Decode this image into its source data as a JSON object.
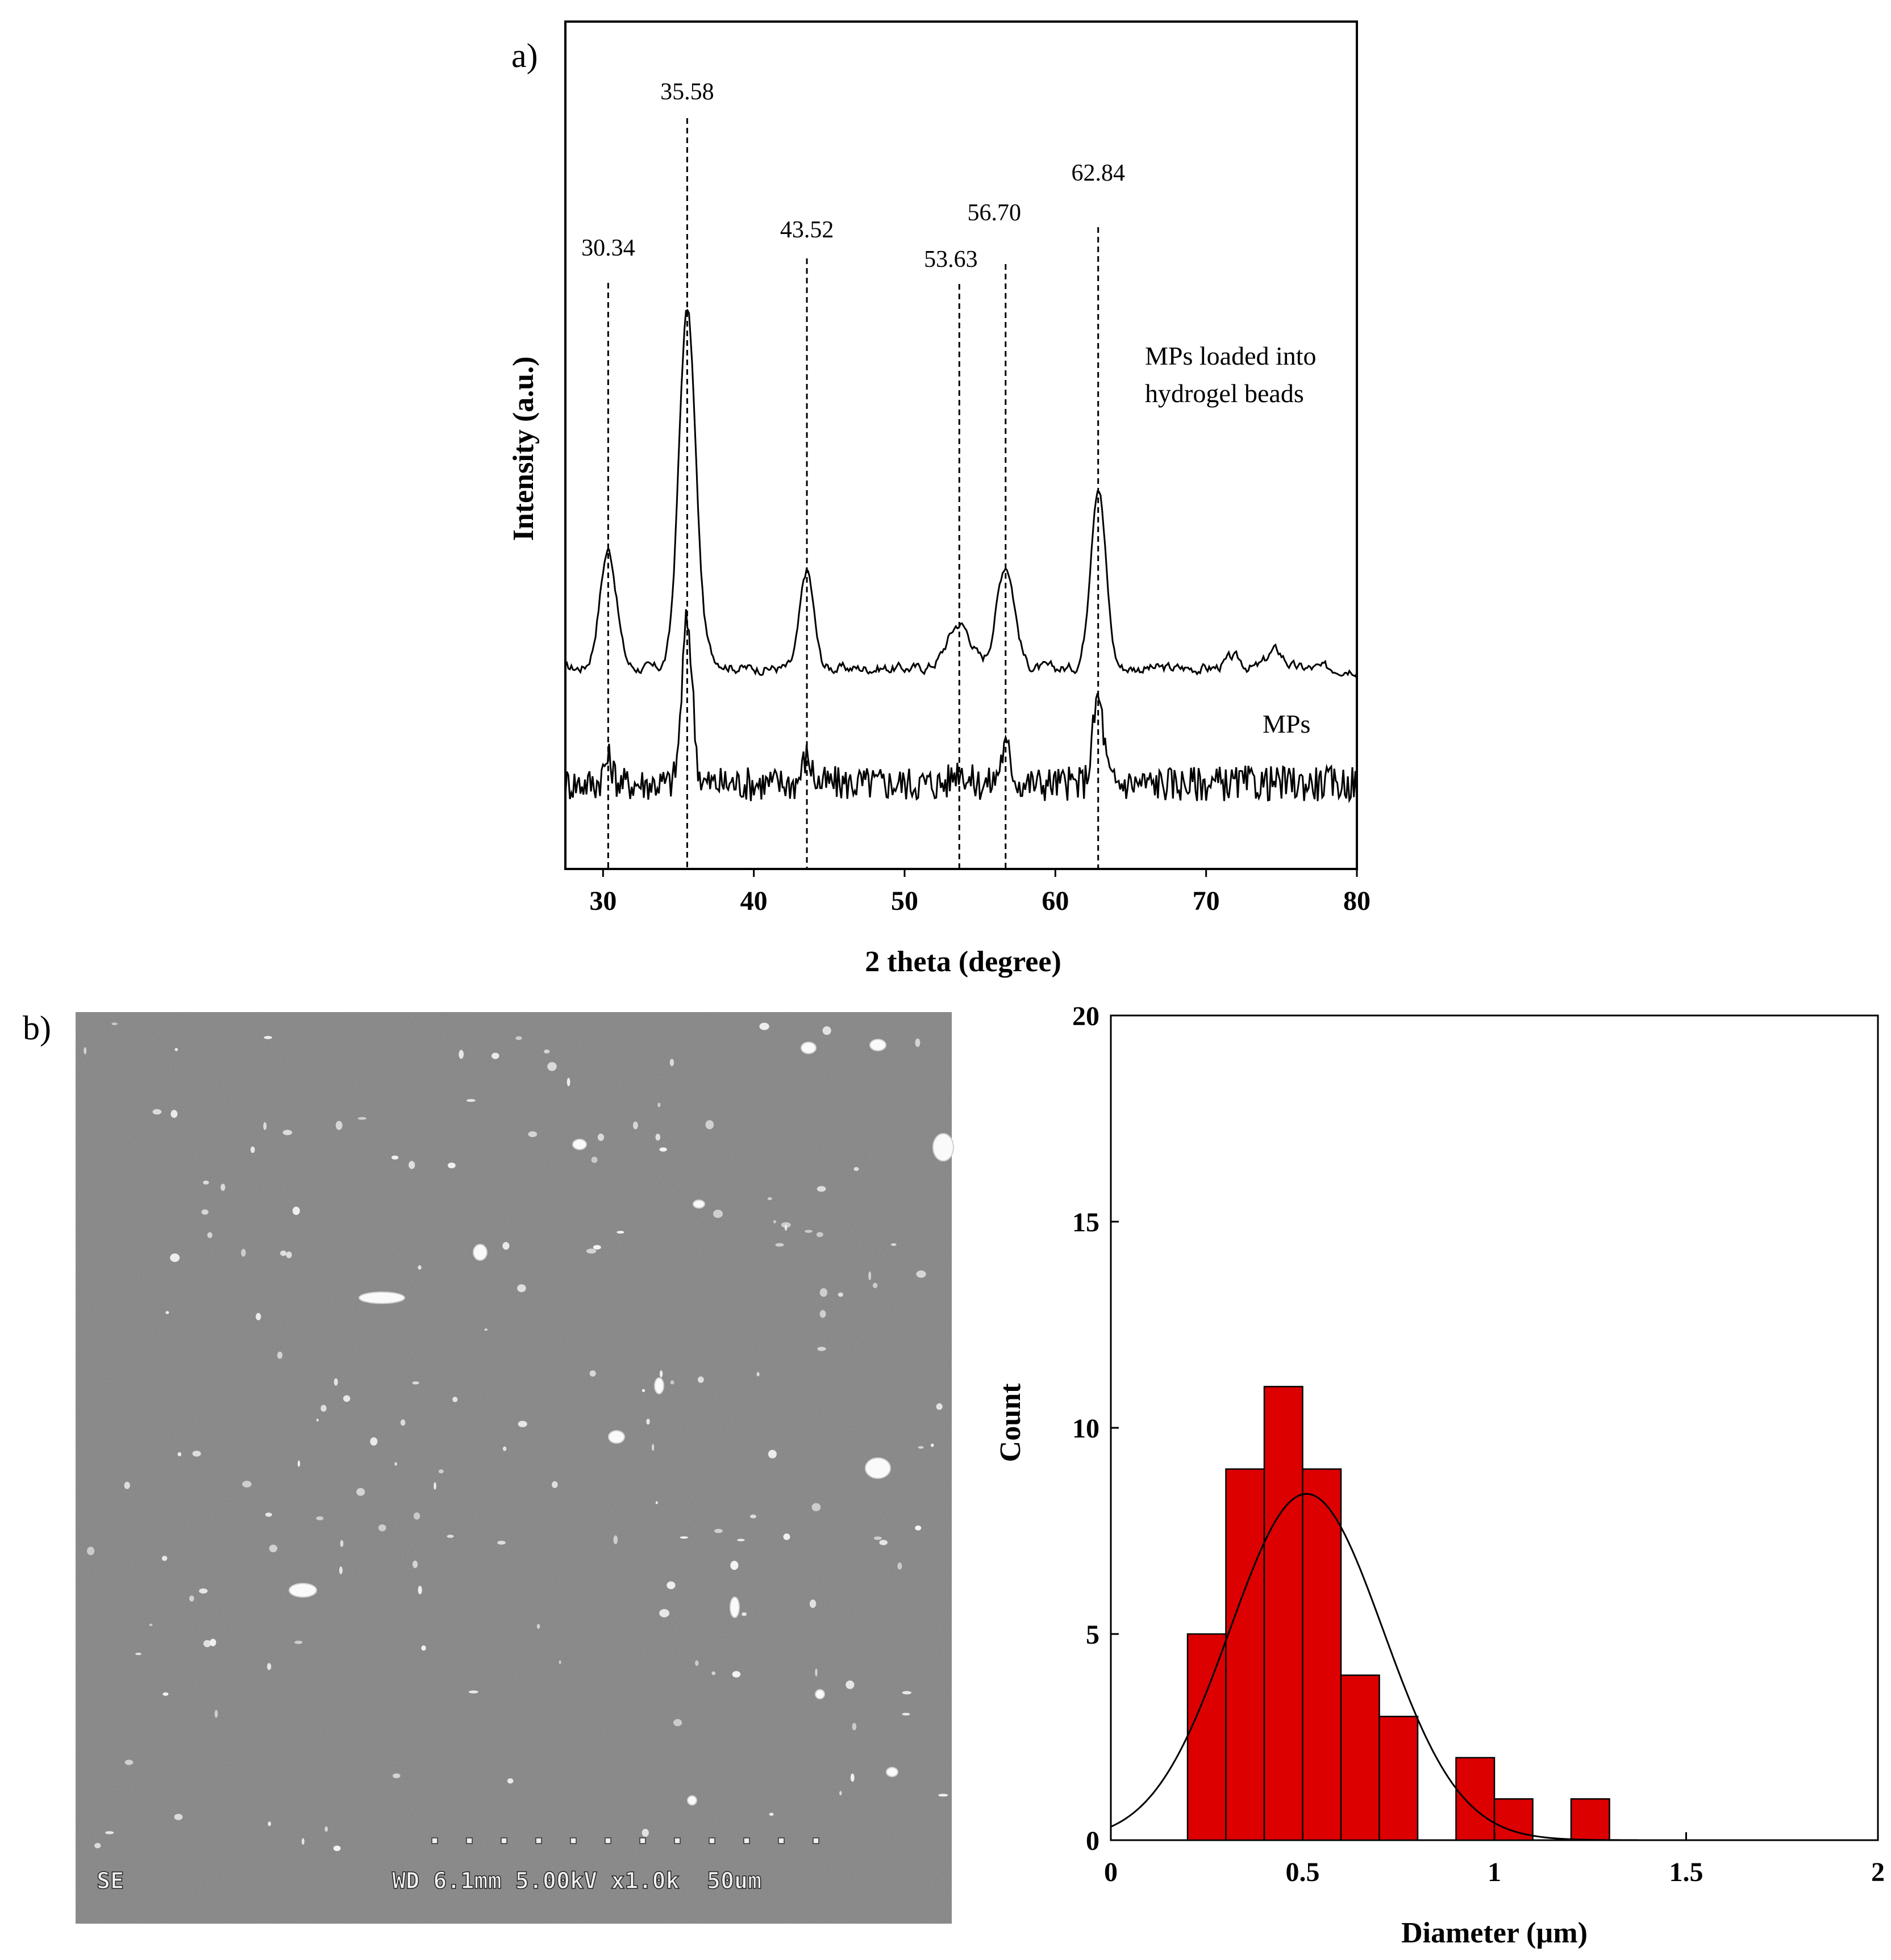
{
  "panel_labels": {
    "a": "a)",
    "b": "b)"
  },
  "chart_data": [
    {
      "type": "line",
      "xlabel": "2 theta (degree)",
      "ylabel": "Intensity (a.u.)",
      "xlim": [
        27.5,
        80
      ],
      "x_ticks": [
        30,
        40,
        50,
        60,
        70,
        80
      ],
      "y_ticks": [],
      "grid": false,
      "peak_labels": [
        "30.34",
        "35.58",
        "43.52",
        "53.63",
        "56.70",
        "62.84"
      ],
      "peak_positions": [
        30.34,
        35.58,
        43.52,
        53.63,
        56.7,
        62.84
      ],
      "series": [
        {
          "name": "MPs loaded into hydrogel beads",
          "label_lines": [
            "MPs loaded into",
            "hydrogel beads"
          ],
          "baseline": 0.42,
          "peak_heights": [
            0.4,
            1.2,
            0.33,
            0.15,
            0.35,
            0.62
          ]
        },
        {
          "name": "MPs",
          "label_lines": [
            "MPs"
          ],
          "baseline": 0.03,
          "peak_heights": [
            0.08,
            0.55,
            0.09,
            0.05,
            0.12,
            0.29
          ]
        }
      ]
    },
    {
      "type": "bar",
      "xlabel": "Diameter (µm)",
      "ylabel": "Count",
      "xlim": [
        0,
        2
      ],
      "ylim": [
        0,
        20
      ],
      "x_ticks": [
        "0",
        "0.5",
        "1",
        "1.5",
        "2"
      ],
      "y_ticks": [
        "0",
        "5",
        "10",
        "15",
        "20"
      ],
      "grid": false,
      "bar_color": "#dd0000",
      "bins": [
        {
          "start": 0.2,
          "end": 0.3,
          "count": 5
        },
        {
          "start": 0.3,
          "end": 0.4,
          "count": 9
        },
        {
          "start": 0.4,
          "end": 0.5,
          "count": 11
        },
        {
          "start": 0.5,
          "end": 0.6,
          "count": 9
        },
        {
          "start": 0.6,
          "end": 0.7,
          "count": 4
        },
        {
          "start": 0.7,
          "end": 0.8,
          "count": 3
        },
        {
          "start": 0.9,
          "end": 1.0,
          "count": 2
        },
        {
          "start": 1.0,
          "end": 1.1,
          "count": 1
        },
        {
          "start": 1.2,
          "end": 1.3,
          "count": 1
        }
      ],
      "fit_curve": {
        "type": "normal",
        "mean": 0.51,
        "sd": 0.2,
        "peak": 8.4
      }
    }
  ],
  "sem_image": {
    "detector": "SE",
    "info_bar": "WD 6.1mm 5.00kV x1.0k  50um"
  }
}
